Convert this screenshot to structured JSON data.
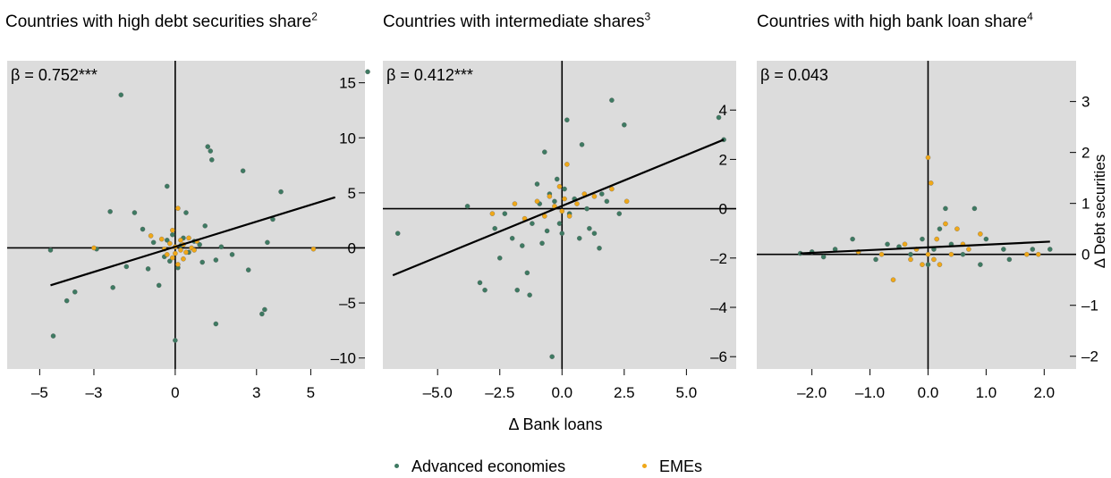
{
  "colors": {
    "panel_bg": "#dcdcdc",
    "advanced": "#3e7a62",
    "eme": "#f0a818",
    "axis": "#000000"
  },
  "panels": [
    {
      "title": "Countries with high debt securities share",
      "sup": "2"
    },
    {
      "title": "Countries with intermediate shares",
      "sup": "3"
    },
    {
      "title": "Countries with high bank loan share",
      "sup": "4"
    }
  ],
  "x_axis_label": "Δ Bank loans",
  "legend": {
    "advanced": "Advanced economies",
    "eme": "EMEs"
  },
  "chart_data": [
    {
      "type": "scatter",
      "annotation": "β = 0.752***",
      "xlabel": "",
      "ylabel": "",
      "xlim": [
        -6.2,
        7.0
      ],
      "ylim": [
        -11.0,
        17.0
      ],
      "xticks": [
        -5,
        -3,
        0,
        3,
        5
      ],
      "xtick_labels": [
        "–5",
        "–3",
        "0",
        "3",
        "5"
      ],
      "yticks": [
        -10,
        -5,
        0,
        5,
        10,
        15
      ],
      "ytick_labels": [
        "–10",
        "–5",
        "0",
        "5",
        "10",
        "15"
      ],
      "fit_line": {
        "x": [
          -4.6,
          5.9
        ],
        "y": [
          -3.4,
          4.6
        ]
      },
      "series": [
        {
          "name": "Advanced economies",
          "key": "advanced",
          "points": [
            [
              -4.6,
              -0.2
            ],
            [
              -4.5,
              -8.0
            ],
            [
              -4.0,
              -4.8
            ],
            [
              -3.7,
              -4.0
            ],
            [
              -2.9,
              -0.1
            ],
            [
              -2.4,
              3.3
            ],
            [
              -2.3,
              -3.6
            ],
            [
              -2.0,
              13.9
            ],
            [
              -1.8,
              -1.7
            ],
            [
              -1.5,
              3.2
            ],
            [
              -1.2,
              1.7
            ],
            [
              -1.0,
              -1.9
            ],
            [
              -0.8,
              0.5
            ],
            [
              -0.6,
              -3.4
            ],
            [
              -0.4,
              -0.8
            ],
            [
              -0.3,
              0.7
            ],
            [
              -0.3,
              5.6
            ],
            [
              -0.2,
              -1.2
            ],
            [
              -0.1,
              1.2
            ],
            [
              0.0,
              -8.4
            ],
            [
              0.1,
              -1.8
            ],
            [
              0.2,
              0.2
            ],
            [
              0.3,
              0.9
            ],
            [
              0.4,
              3.2
            ],
            [
              0.5,
              -0.4
            ],
            [
              0.7,
              0.6
            ],
            [
              0.9,
              0.3
            ],
            [
              1.0,
              -1.3
            ],
            [
              1.1,
              2.0
            ],
            [
              1.2,
              9.2
            ],
            [
              1.3,
              8.8
            ],
            [
              1.35,
              8.0
            ],
            [
              1.5,
              -1.1
            ],
            [
              1.5,
              -6.9
            ],
            [
              1.7,
              0.1
            ],
            [
              2.1,
              -0.6
            ],
            [
              2.5,
              7.0
            ],
            [
              2.7,
              -2.0
            ],
            [
              3.2,
              -6.0
            ],
            [
              3.3,
              -5.6
            ],
            [
              3.4,
              0.5
            ],
            [
              3.6,
              2.6
            ],
            [
              3.9,
              5.1
            ],
            [
              7.1,
              16.0
            ]
          ]
        },
        {
          "name": "EMEs",
          "key": "eme",
          "points": [
            [
              -3.0,
              0.0
            ],
            [
              -0.9,
              1.1
            ],
            [
              -0.5,
              0.8
            ],
            [
              -0.4,
              -0.1
            ],
            [
              -0.3,
              -0.6
            ],
            [
              -0.2,
              0.4
            ],
            [
              -0.1,
              -0.9
            ],
            [
              -0.1,
              1.6
            ],
            [
              0.0,
              0.1
            ],
            [
              0.0,
              -0.5
            ],
            [
              0.1,
              3.6
            ],
            [
              0.1,
              -1.5
            ],
            [
              0.2,
              0.7
            ],
            [
              0.2,
              -0.2
            ],
            [
              0.3,
              0.3
            ],
            [
              0.3,
              -1.0
            ],
            [
              0.4,
              -0.4
            ],
            [
              0.5,
              0.9
            ],
            [
              0.6,
              0.0
            ],
            [
              0.7,
              -0.2
            ],
            [
              0.8,
              0.6
            ],
            [
              5.1,
              -0.1
            ]
          ]
        }
      ]
    },
    {
      "type": "scatter",
      "annotation": "β = 0.412***",
      "xlabel": "",
      "ylabel": "",
      "xlim": [
        -7.2,
        7.0
      ],
      "ylim": [
        -6.5,
        6.0
      ],
      "xticks": [
        -5.0,
        -2.5,
        0.0,
        2.5,
        5.0
      ],
      "xtick_labels": [
        "–5.0",
        "–2.5",
        "0.0",
        "2.5",
        "5.0"
      ],
      "yticks": [
        -6,
        -4,
        -2,
        0,
        2,
        4
      ],
      "ytick_labels": [
        "–6",
        "–4",
        "–2",
        "0",
        "2",
        "4"
      ],
      "fit_line": {
        "x": [
          -6.8,
          6.5
        ],
        "y": [
          -2.7,
          2.8
        ]
      },
      "series": [
        {
          "name": "Advanced economies",
          "key": "advanced",
          "points": [
            [
              -6.6,
              -1.0
            ],
            [
              -3.8,
              0.1
            ],
            [
              -3.3,
              -3.0
            ],
            [
              -3.1,
              -3.3
            ],
            [
              -2.7,
              -0.8
            ],
            [
              -2.5,
              -2.0
            ],
            [
              -2.3,
              -0.2
            ],
            [
              -2.0,
              -1.2
            ],
            [
              -1.8,
              -3.3
            ],
            [
              -1.6,
              -1.5
            ],
            [
              -1.4,
              -2.6
            ],
            [
              -1.3,
              -3.5
            ],
            [
              -1.2,
              -0.6
            ],
            [
              -1.0,
              1.0
            ],
            [
              -0.9,
              0.2
            ],
            [
              -0.8,
              -1.4
            ],
            [
              -0.7,
              2.3
            ],
            [
              -0.6,
              -0.9
            ],
            [
              -0.5,
              0.6
            ],
            [
              -0.4,
              -6.0
            ],
            [
              -0.3,
              0.3
            ],
            [
              -0.2,
              1.2
            ],
            [
              -0.1,
              -0.6
            ],
            [
              0.0,
              -1.0
            ],
            [
              0.1,
              0.8
            ],
            [
              0.2,
              3.6
            ],
            [
              0.3,
              -0.2
            ],
            [
              0.5,
              0.4
            ],
            [
              0.7,
              -1.2
            ],
            [
              0.8,
              2.6
            ],
            [
              1.0,
              0.0
            ],
            [
              1.1,
              -0.8
            ],
            [
              1.3,
              -1.0
            ],
            [
              1.5,
              -1.6
            ],
            [
              1.6,
              0.6
            ],
            [
              1.8,
              0.3
            ],
            [
              2.0,
              4.4
            ],
            [
              2.3,
              -0.2
            ],
            [
              2.5,
              3.4
            ],
            [
              6.3,
              3.7
            ],
            [
              6.5,
              2.8
            ]
          ]
        },
        {
          "name": "EMEs",
          "key": "eme",
          "points": [
            [
              -2.8,
              -0.2
            ],
            [
              -1.9,
              0.2
            ],
            [
              -1.5,
              -0.4
            ],
            [
              -1.0,
              0.3
            ],
            [
              -0.7,
              -0.3
            ],
            [
              -0.5,
              0.5
            ],
            [
              -0.3,
              0.1
            ],
            [
              -0.1,
              0.9
            ],
            [
              0.0,
              -0.1
            ],
            [
              0.1,
              0.4
            ],
            [
              0.2,
              1.8
            ],
            [
              0.3,
              -0.3
            ],
            [
              0.6,
              0.2
            ],
            [
              0.9,
              0.6
            ],
            [
              1.3,
              0.5
            ],
            [
              2.0,
              0.8
            ],
            [
              2.6,
              0.3
            ]
          ]
        }
      ]
    },
    {
      "type": "scatter",
      "annotation": "β =  0.043",
      "xlabel": "",
      "ylabel": "Δ Debt securities",
      "xlim": [
        -2.95,
        2.55
      ],
      "ylim": [
        -2.25,
        3.8
      ],
      "xticks": [
        -2.0,
        -1.0,
        0.0,
        1.0,
        2.0
      ],
      "xtick_labels": [
        "–2.0",
        "–1.0",
        "0.0",
        "1.0",
        "2.0"
      ],
      "yticks": [
        -2,
        -1,
        0,
        1,
        2,
        3
      ],
      "ytick_labels": [
        "–2",
        "–1",
        "0",
        "1",
        "2",
        "3"
      ],
      "fit_line": {
        "x": [
          -2.2,
          2.1
        ],
        "y": [
          0.02,
          0.25
        ]
      },
      "series": [
        {
          "name": "Advanced economies",
          "key": "advanced",
          "points": [
            [
              -2.2,
              0.02
            ],
            [
              -2.0,
              0.05
            ],
            [
              -1.8,
              -0.05
            ],
            [
              -1.6,
              0.1
            ],
            [
              -1.3,
              0.3
            ],
            [
              -1.2,
              0.05
            ],
            [
              -0.9,
              -0.1
            ],
            [
              -0.7,
              0.2
            ],
            [
              -0.5,
              0.15
            ],
            [
              -0.3,
              0.0
            ],
            [
              -0.1,
              0.3
            ],
            [
              0.0,
              -0.2
            ],
            [
              0.1,
              0.1
            ],
            [
              0.2,
              0.5
            ],
            [
              0.3,
              0.9
            ],
            [
              0.4,
              0.2
            ],
            [
              0.6,
              0.0
            ],
            [
              0.8,
              0.9
            ],
            [
              0.9,
              -0.2
            ],
            [
              1.0,
              0.3
            ],
            [
              1.3,
              0.1
            ],
            [
              1.4,
              -0.1
            ],
            [
              1.8,
              0.1
            ],
            [
              2.1,
              0.1
            ]
          ]
        },
        {
          "name": "EMEs",
          "key": "eme",
          "points": [
            [
              -1.2,
              0.05
            ],
            [
              -0.8,
              0.0
            ],
            [
              -0.6,
              -0.5
            ],
            [
              -0.4,
              0.2
            ],
            [
              -0.3,
              -0.1
            ],
            [
              -0.2,
              0.1
            ],
            [
              -0.1,
              -0.2
            ],
            [
              0.0,
              1.9
            ],
            [
              0.0,
              0.0
            ],
            [
              0.05,
              1.4
            ],
            [
              0.1,
              -0.1
            ],
            [
              0.15,
              0.3
            ],
            [
              0.2,
              -0.2
            ],
            [
              0.3,
              0.6
            ],
            [
              0.4,
              0.0
            ],
            [
              0.5,
              0.5
            ],
            [
              0.6,
              0.2
            ],
            [
              0.7,
              0.1
            ],
            [
              0.9,
              0.4
            ],
            [
              1.7,
              0.0
            ],
            [
              1.9,
              0.0
            ]
          ]
        }
      ]
    }
  ]
}
